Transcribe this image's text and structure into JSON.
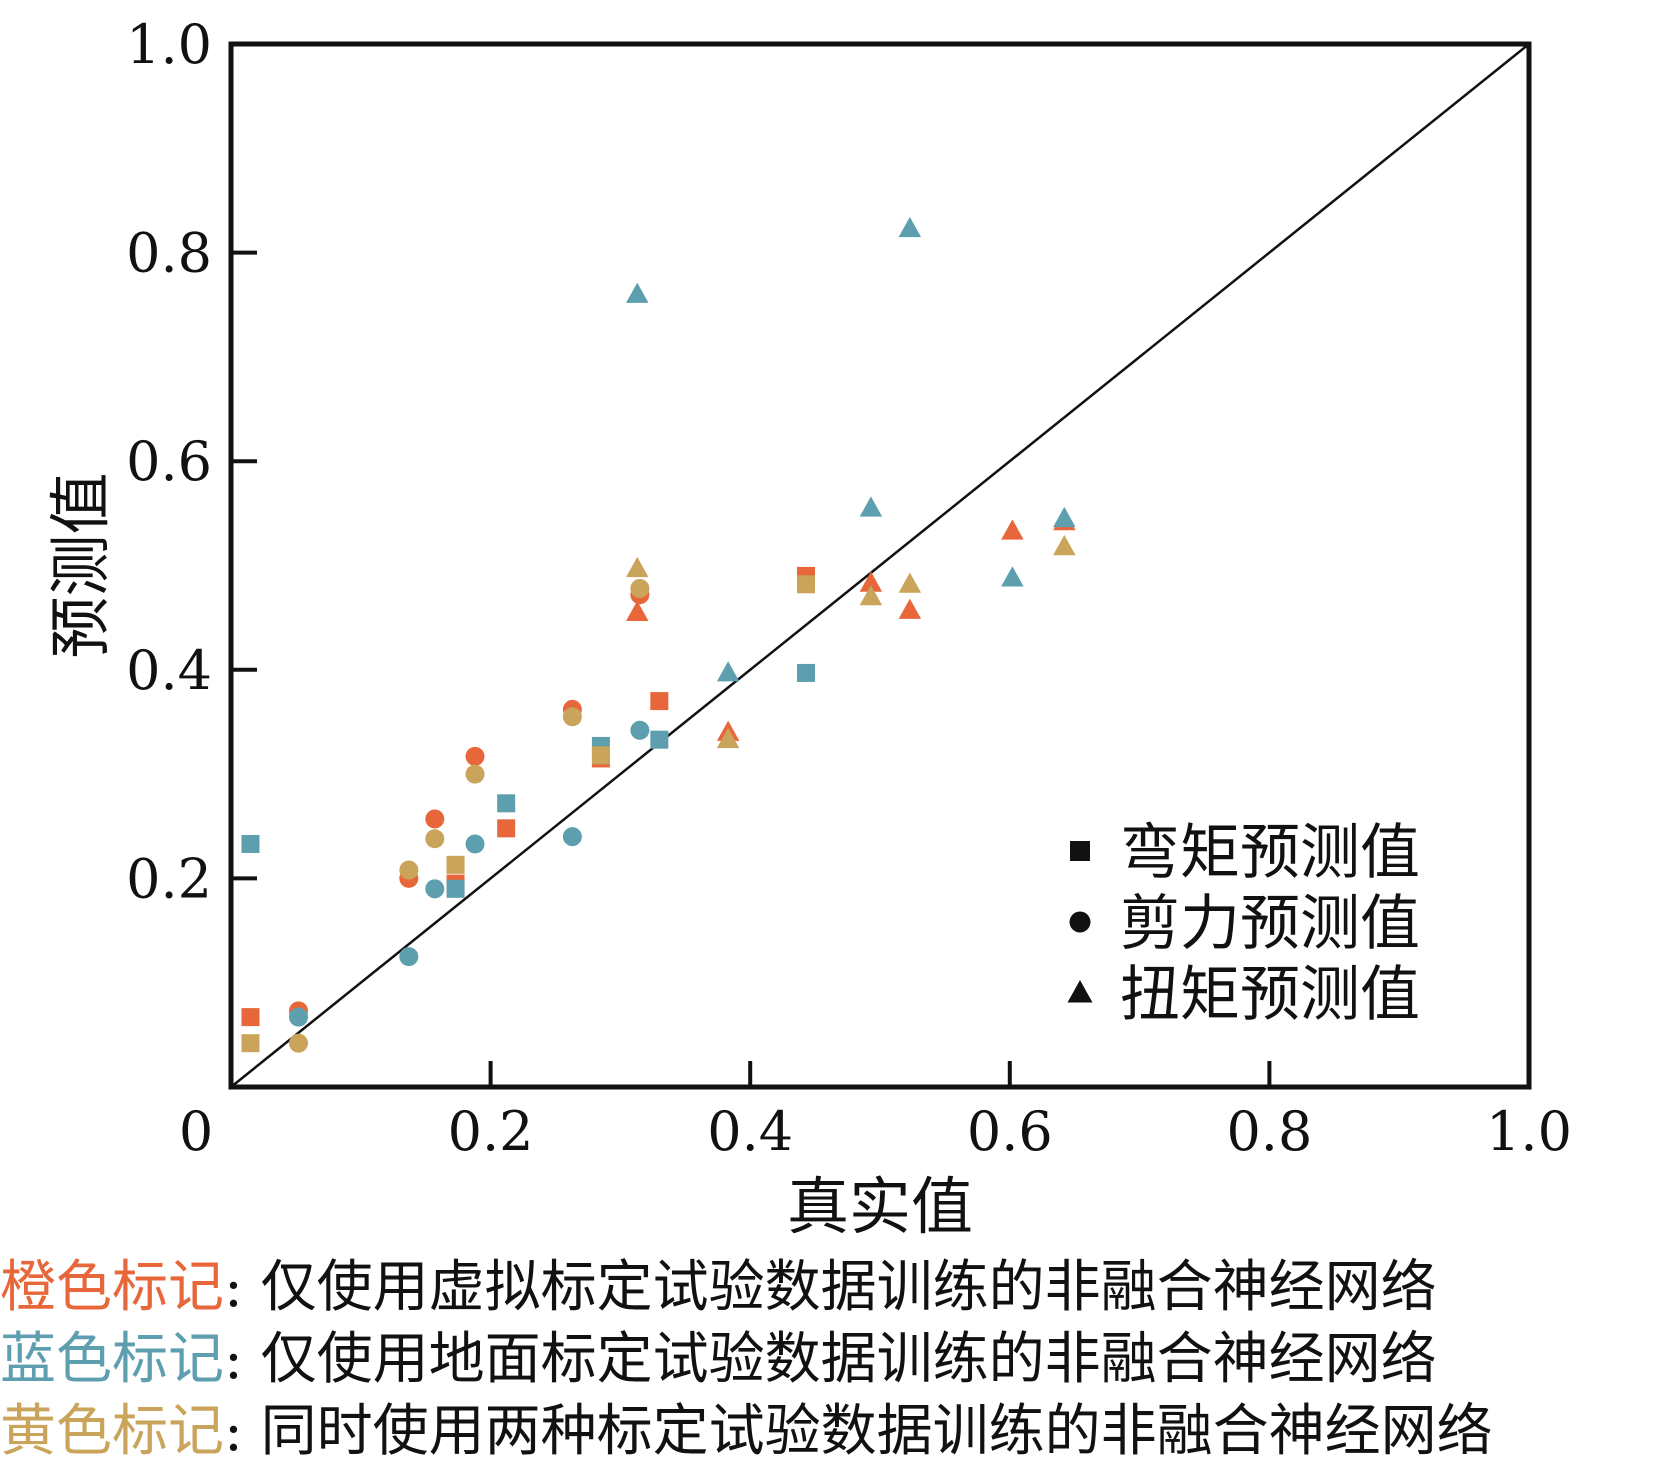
{
  "chart_data": {
    "type": "scatter",
    "xlabel": "真实值",
    "ylabel": "预测值",
    "xlim": [
      0,
      1.0
    ],
    "ylim": [
      0,
      1.0
    ],
    "x_ticks": [
      {
        "value": 0,
        "label": "0"
      },
      {
        "value": 0.2,
        "label": "0.2"
      },
      {
        "value": 0.4,
        "label": "0.4"
      },
      {
        "value": 0.6,
        "label": "0.6"
      },
      {
        "value": 0.8,
        "label": "0.8"
      },
      {
        "value": 1.0,
        "label": "1.0"
      }
    ],
    "y_ticks": [
      {
        "value": 0.2,
        "label": "0.2"
      },
      {
        "value": 0.4,
        "label": "0.4"
      },
      {
        "value": 0.6,
        "label": "0.6"
      },
      {
        "value": 0.8,
        "label": "0.8"
      },
      {
        "value": 1.0,
        "label": "1.0"
      }
    ],
    "reference_line": {
      "x": [
        0,
        1.0
      ],
      "y": [
        0,
        1.0
      ]
    },
    "legend_position": "bottom-right",
    "legend": [
      {
        "marker": "square",
        "label": "弯矩预测值"
      },
      {
        "marker": "circle",
        "label": "剪力预测值"
      },
      {
        "marker": "triangle",
        "label": "扭矩预测值"
      }
    ],
    "colors": {
      "orange": "#e8673a",
      "blue": "#5e9faf",
      "yellow": "#c9a45a",
      "black": "#111111"
    },
    "series": [
      {
        "name": "橙色标记-弯矩",
        "color": "orange",
        "marker": "square",
        "points": [
          [
            0.015,
            0.067
          ],
          [
            0.173,
            0.195
          ],
          [
            0.212,
            0.248
          ],
          [
            0.285,
            0.315
          ],
          [
            0.33,
            0.37
          ],
          [
            0.443,
            0.49
          ]
        ]
      },
      {
        "name": "橙色标记-剪力",
        "color": "orange",
        "marker": "circle",
        "points": [
          [
            0.052,
            0.073
          ],
          [
            0.137,
            0.2
          ],
          [
            0.157,
            0.257
          ],
          [
            0.188,
            0.317
          ],
          [
            0.263,
            0.362
          ],
          [
            0.315,
            0.472
          ]
        ]
      },
      {
        "name": "橙色标记-扭矩",
        "color": "orange",
        "marker": "triangle",
        "points": [
          [
            0.313,
            0.455
          ],
          [
            0.383,
            0.34
          ],
          [
            0.493,
            0.483
          ],
          [
            0.523,
            0.457
          ],
          [
            0.602,
            0.533
          ],
          [
            0.642,
            0.542
          ]
        ]
      },
      {
        "name": "蓝色标记-弯矩",
        "color": "blue",
        "marker": "square",
        "points": [
          [
            0.015,
            0.233
          ],
          [
            0.173,
            0.19
          ],
          [
            0.212,
            0.272
          ],
          [
            0.285,
            0.327
          ],
          [
            0.33,
            0.333
          ],
          [
            0.443,
            0.397
          ]
        ]
      },
      {
        "name": "蓝色标记-剪力",
        "color": "blue",
        "marker": "circle",
        "points": [
          [
            0.052,
            0.067
          ],
          [
            0.137,
            0.125
          ],
          [
            0.157,
            0.19
          ],
          [
            0.188,
            0.233
          ],
          [
            0.263,
            0.24
          ],
          [
            0.315,
            0.342
          ]
        ]
      },
      {
        "name": "蓝色标记-扭矩",
        "color": "blue",
        "marker": "triangle",
        "points": [
          [
            0.313,
            0.76
          ],
          [
            0.383,
            0.397
          ],
          [
            0.493,
            0.555
          ],
          [
            0.523,
            0.823
          ],
          [
            0.602,
            0.488
          ],
          [
            0.642,
            0.545
          ]
        ]
      },
      {
        "name": "黄色标记-弯矩",
        "color": "yellow",
        "marker": "square",
        "points": [
          [
            0.015,
            0.042
          ],
          [
            0.173,
            0.213
          ],
          [
            0.285,
            0.318
          ],
          [
            0.443,
            0.482
          ]
        ]
      },
      {
        "name": "黄色标记-剪力",
        "color": "yellow",
        "marker": "circle",
        "points": [
          [
            0.052,
            0.042
          ],
          [
            0.137,
            0.208
          ],
          [
            0.157,
            0.238
          ],
          [
            0.188,
            0.3
          ],
          [
            0.263,
            0.355
          ],
          [
            0.315,
            0.478
          ]
        ]
      },
      {
        "name": "黄色标记-扭矩",
        "color": "yellow",
        "marker": "triangle",
        "points": [
          [
            0.313,
            0.497
          ],
          [
            0.383,
            0.333
          ],
          [
            0.493,
            0.47
          ],
          [
            0.523,
            0.482
          ],
          [
            0.642,
            0.518
          ]
        ]
      }
    ]
  },
  "captions": [
    {
      "key": "橙色标记",
      "sep": ":",
      "text": " 仅使用虚拟标定试验数据训练的非融合神经网络",
      "color": "#e8673a"
    },
    {
      "key": "蓝色标记",
      "sep": ":",
      "text": " 仅使用地面标定试验数据训练的非融合神经网络",
      "color": "#5e9faf"
    },
    {
      "key": "黄色标记",
      "sep": ":",
      "text": " 同时使用两种标定试验数据训练的非融合神经网络",
      "color": "#c9a45a"
    }
  ]
}
